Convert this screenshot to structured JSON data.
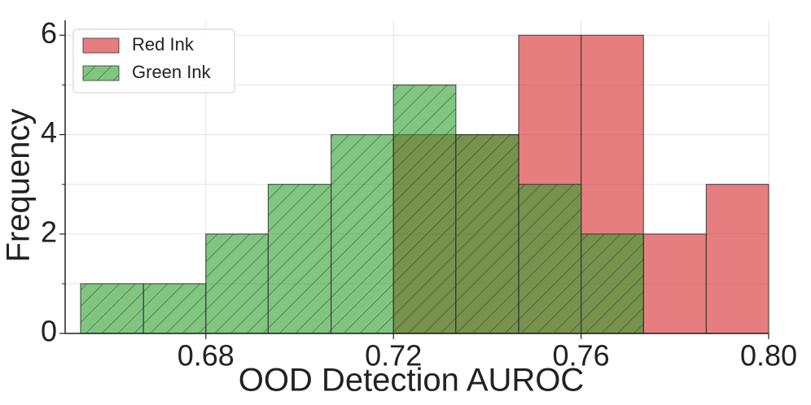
{
  "chart_data": {
    "type": "histogram",
    "xlabel": "OOD Detection AUROC",
    "ylabel": "Frequency",
    "bins": [
      0.6533,
      0.6667,
      0.68,
      0.6933,
      0.7067,
      0.72,
      0.7333,
      0.7467,
      0.76,
      0.7733,
      0.7867,
      0.8
    ],
    "series": [
      {
        "name": "Red Ink",
        "color": "#d62728",
        "alpha": 0.6,
        "hatch": null,
        "values": [
          0,
          0,
          0,
          0,
          0,
          4,
          4,
          6,
          6,
          2,
          3
        ]
      },
      {
        "name": "Green Ink",
        "color": "#2ca02c",
        "alpha": 0.6,
        "hatch": "//",
        "values": [
          1,
          1,
          2,
          3,
          4,
          5,
          4,
          3,
          2,
          0,
          0
        ]
      }
    ],
    "xlim": [
      0.65,
      0.8
    ],
    "ylim": [
      0,
      6.3
    ],
    "xticks": [
      0.68,
      0.72,
      0.76,
      {
        "value": 0.8,
        "label": "0.80"
      }
    ],
    "yticks": [
      0,
      2,
      4,
      6
    ],
    "yminorticks": [
      1,
      3,
      5
    ],
    "grid": true,
    "legend": "upper left"
  }
}
